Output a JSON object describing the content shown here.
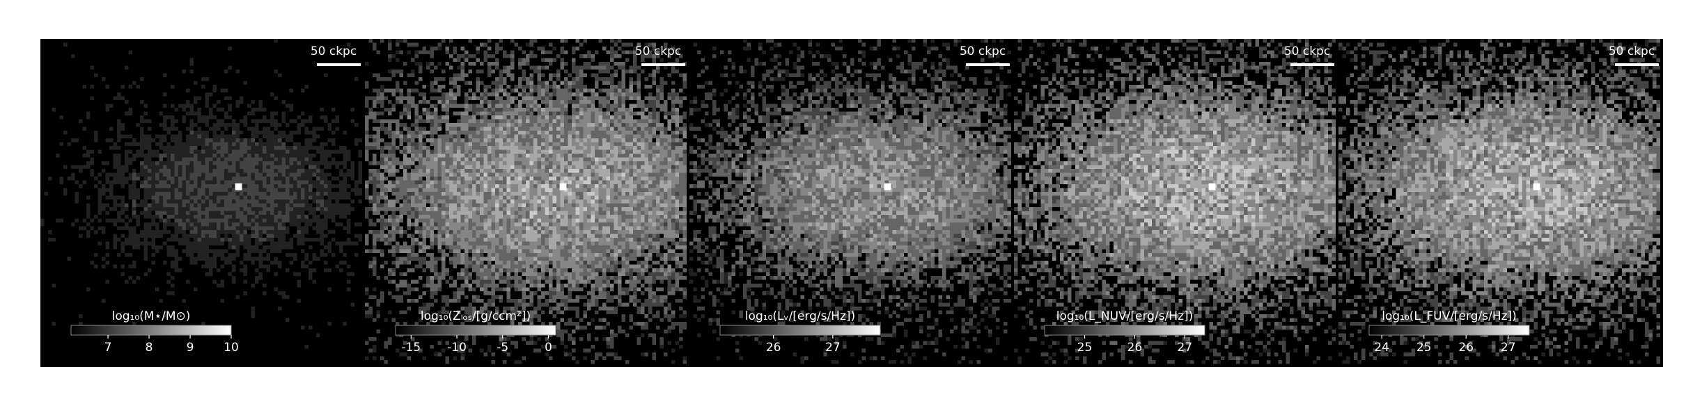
{
  "panels": [
    {
      "scalebar": "50 ckpc",
      "colorbar": {
        "label": "log₁₀(M⋆/M⊙)",
        "lim": [
          6.1,
          10
        ],
        "ticks": [
          7,
          8,
          9,
          10
        ]
      }
    },
    {
      "scalebar": "50 ckpc",
      "colorbar": {
        "label": "log₁₀(Zₗₒₛ/[g/ccm²])",
        "lim": [
          -16.7,
          0.8
        ],
        "ticks": [
          -15,
          -10,
          -5,
          0
        ]
      }
    },
    {
      "scalebar": "50 ckpc",
      "colorbar": {
        "label": "log₁₀(Lᵥ/[erg/s/Hz])",
        "lim": [
          25.1,
          27.8
        ],
        "ticks": [
          26,
          27
        ]
      }
    },
    {
      "scalebar": "50 ckpc",
      "colorbar": {
        "label": "log₁₀(L_NUV/[erg/s/Hz])",
        "lim": [
          24.2,
          27.4
        ],
        "ticks": [
          25,
          26,
          27
        ]
      }
    },
    {
      "scalebar": "50 ckpc",
      "colorbar": {
        "label": "log₁₀(L_FUV/[erg/s/Hz])",
        "lim": [
          23.7,
          27.5
        ],
        "ticks": [
          24,
          25,
          26,
          27
        ]
      }
    }
  ]
}
